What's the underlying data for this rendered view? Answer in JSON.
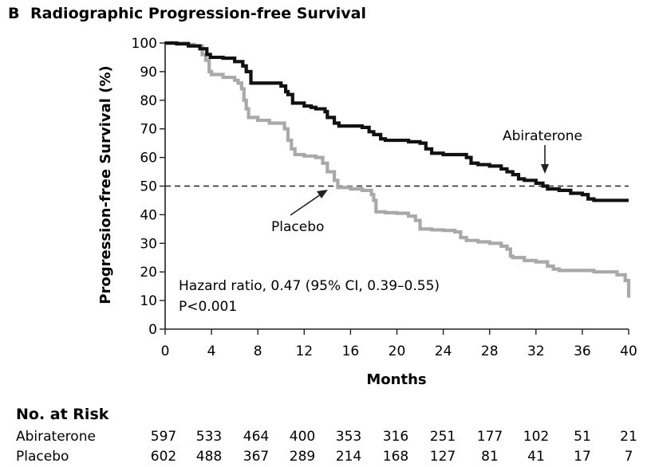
{
  "panel": {
    "letter": "B",
    "title": "Radiographic Progression-free Survival"
  },
  "chart_data": {
    "type": "line",
    "title": "Radiographic Progression-free Survival",
    "xlabel": "Months",
    "ylabel": "Progression-free Survival (%)",
    "xlim": [
      0,
      40
    ],
    "ylim": [
      0,
      100
    ],
    "xticks": [
      "0",
      "4",
      "8",
      "12",
      "16",
      "20",
      "24",
      "28",
      "32",
      "36",
      "40"
    ],
    "yticks": [
      "0",
      "10",
      "20",
      "30",
      "40",
      "50",
      "60",
      "70",
      "80",
      "90",
      "100"
    ],
    "reference_line": {
      "y": 50,
      "style": "dashed"
    },
    "series": [
      {
        "name": "Abiraterone",
        "color": "#111111",
        "points": [
          [
            0,
            100
          ],
          [
            1,
            99.7
          ],
          [
            2,
            99
          ],
          [
            3,
            98
          ],
          [
            3.6,
            96
          ],
          [
            3.9,
            95
          ],
          [
            5,
            94.7
          ],
          [
            6,
            93.5
          ],
          [
            6.7,
            92
          ],
          [
            7,
            90
          ],
          [
            7.4,
            86
          ],
          [
            8.5,
            86
          ],
          [
            9,
            86
          ],
          [
            10,
            85
          ],
          [
            10.4,
            83
          ],
          [
            10.6,
            82
          ],
          [
            11,
            79
          ],
          [
            12,
            78
          ],
          [
            12.6,
            77.5
          ],
          [
            13,
            77
          ],
          [
            13.8,
            76
          ],
          [
            14,
            74
          ],
          [
            14.6,
            72
          ],
          [
            15,
            71
          ],
          [
            16,
            71
          ],
          [
            17,
            70.5
          ],
          [
            17.6,
            69
          ],
          [
            18,
            68
          ],
          [
            18.6,
            66.5
          ],
          [
            19,
            66
          ],
          [
            20,
            66
          ],
          [
            21,
            65.5
          ],
          [
            21.4,
            65.5
          ],
          [
            22,
            65
          ],
          [
            22.5,
            63
          ],
          [
            23,
            61.5
          ],
          [
            24,
            61
          ],
          [
            25,
            61
          ],
          [
            26,
            60
          ],
          [
            26.4,
            58
          ],
          [
            27,
            57.5
          ],
          [
            28,
            57
          ],
          [
            29,
            56
          ],
          [
            29.5,
            55
          ],
          [
            30,
            54
          ],
          [
            30.5,
            52.5
          ],
          [
            31,
            52
          ],
          [
            32,
            51
          ],
          [
            32.6,
            50
          ],
          [
            33,
            49
          ],
          [
            34,
            48.5
          ],
          [
            35,
            47.5
          ],
          [
            36,
            47
          ],
          [
            36.5,
            45.5
          ],
          [
            37,
            45
          ],
          [
            38,
            45
          ],
          [
            40,
            45
          ]
        ]
      },
      {
        "name": "Placebo",
        "color": "#a9a9a9",
        "points": [
          [
            0,
            100
          ],
          [
            1,
            100
          ],
          [
            2,
            99.5
          ],
          [
            2.5,
            99
          ],
          [
            3.2,
            96
          ],
          [
            3.5,
            94
          ],
          [
            3.8,
            90
          ],
          [
            4,
            89
          ],
          [
            5,
            88
          ],
          [
            6,
            87
          ],
          [
            6.3,
            86
          ],
          [
            6.6,
            84
          ],
          [
            6.8,
            80
          ],
          [
            7,
            77
          ],
          [
            7.2,
            74
          ],
          [
            8,
            73
          ],
          [
            9,
            72
          ],
          [
            10,
            72
          ],
          [
            10.3,
            70
          ],
          [
            10.6,
            66
          ],
          [
            10.9,
            63
          ],
          [
            11.2,
            61
          ],
          [
            12,
            60.5
          ],
          [
            13,
            60
          ],
          [
            13.6,
            58
          ],
          [
            14,
            55
          ],
          [
            14.6,
            52
          ],
          [
            14.9,
            49.5
          ],
          [
            16,
            49
          ],
          [
            17,
            48.5
          ],
          [
            17.8,
            47
          ],
          [
            18,
            45
          ],
          [
            18.2,
            41
          ],
          [
            19,
            40.7
          ],
          [
            20,
            40.5
          ],
          [
            21,
            39.5
          ],
          [
            21.6,
            38
          ],
          [
            22,
            35
          ],
          [
            23,
            34.7
          ],
          [
            24,
            34.5
          ],
          [
            25,
            34
          ],
          [
            25.5,
            32
          ],
          [
            26,
            31
          ],
          [
            27,
            30.5
          ],
          [
            28,
            30
          ],
          [
            29,
            29
          ],
          [
            29.5,
            28
          ],
          [
            29.8,
            25.5
          ],
          [
            30,
            25
          ],
          [
            31,
            24
          ],
          [
            32,
            23.5
          ],
          [
            33,
            22
          ],
          [
            33.5,
            21
          ],
          [
            34,
            20.5
          ],
          [
            36,
            20.5
          ],
          [
            37,
            20
          ],
          [
            38,
            20
          ],
          [
            39,
            19
          ],
          [
            39.7,
            17
          ],
          [
            40,
            11
          ]
        ]
      }
    ],
    "annotations": [
      {
        "text": "Abiraterone",
        "points_to": [
          32.8,
          51
        ]
      },
      {
        "text": "Placebo",
        "points_to": [
          14.8,
          49.5
        ]
      }
    ]
  },
  "stats": {
    "hazard_ratio": "Hazard ratio, 0.47 (95% CI, 0.39–0.55)",
    "p_value": "P<0.001"
  },
  "risk_table": {
    "title": "No. at Risk",
    "rows": [
      {
        "label": "Abiraterone",
        "values": [
          "597",
          "533",
          "464",
          "400",
          "353",
          "316",
          "251",
          "177",
          "102",
          "51",
          "21"
        ]
      },
      {
        "label": "Placebo",
        "values": [
          "602",
          "488",
          "367",
          "289",
          "214",
          "168",
          "127",
          "81",
          "41",
          "17",
          "7"
        ]
      }
    ]
  }
}
